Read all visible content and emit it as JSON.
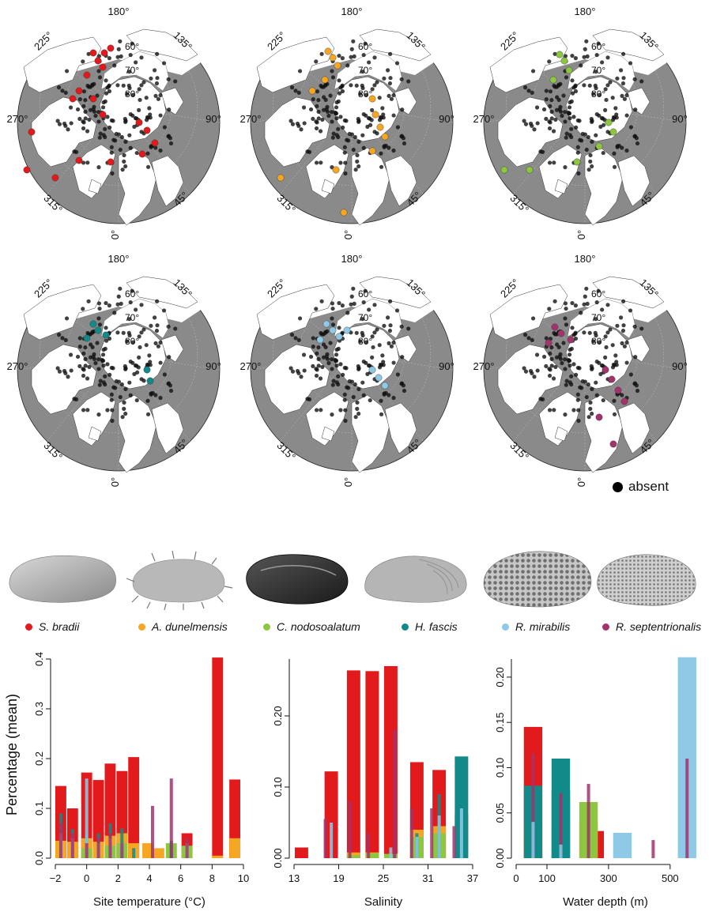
{
  "maps": {
    "lat_labels": [
      "60°",
      "70°",
      "80°"
    ],
    "lon_labels": [
      "180°",
      "135°",
      "90°",
      "45°",
      "0°",
      "315°",
      "270°",
      "225°"
    ],
    "panels": [
      {
        "species": "S. bradii",
        "color": "#e31a1c"
      },
      {
        "species": "A. dunelmensis",
        "color": "#f5a623"
      },
      {
        "species": "C. nodosoalatum",
        "color": "#8dc63f"
      },
      {
        "species": "H. fascis",
        "color": "#138a8a"
      },
      {
        "species": "R. mirabilis",
        "color": "#8ecae6"
      },
      {
        "species": "R. septentrionalis",
        "color": "#a3336b"
      }
    ]
  },
  "absent_legend": {
    "label": "absent",
    "color": "#000000"
  },
  "species_legend": [
    {
      "name": "S. bradii",
      "color": "#e31a1c"
    },
    {
      "name": "A. dunelmensis",
      "color": "#f5a623"
    },
    {
      "name": "C. nodosoalatum",
      "color": "#8dc63f"
    },
    {
      "name": "H. fascis",
      "color": "#138a8a"
    },
    {
      "name": "R. mirabilis",
      "color": "#8ecae6"
    },
    {
      "name": "R. septentrionalis",
      "color": "#a3336b"
    }
  ],
  "ylabel_main": "Percentage (mean)",
  "chart_data": [
    {
      "type": "bar",
      "xlabel": "Site temperature (°C)",
      "ylabel": "Percentage (mean)",
      "xlim": [
        -2,
        10
      ],
      "ylim": [
        0,
        0.4
      ],
      "xticks": [
        "−2",
        "0",
        "2",
        "4",
        "6",
        "8",
        "10"
      ],
      "yticks": [
        "0.0",
        "0.1",
        "0.2",
        "0.3",
        "0.4"
      ],
      "bin_width": 0.7,
      "series": [
        {
          "color": "#e31a1c",
          "bars": [
            [
              -1.65,
              0.145
            ],
            [
              -0.9,
              0.1
            ],
            [
              0.0,
              0.172
            ],
            [
              0.75,
              0.157
            ],
            [
              1.5,
              0.19
            ],
            [
              2.25,
              0.175
            ],
            [
              3.0,
              0.203
            ],
            [
              6.4,
              0.05
            ],
            [
              8.35,
              0.403
            ],
            [
              9.45,
              0.158
            ]
          ]
        },
        {
          "color": "#f5a623",
          "bars": [
            [
              -1.65,
              0.035
            ],
            [
              -0.9,
              0.033
            ],
            [
              0.0,
              0.04
            ],
            [
              0.75,
              0.033
            ],
            [
              1.5,
              0.045
            ],
            [
              2.25,
              0.05
            ],
            [
              3.0,
              0.03
            ],
            [
              3.9,
              0.03
            ],
            [
              4.6,
              0.02
            ],
            [
              5.4,
              0.005
            ],
            [
              8.35,
              0.005
            ],
            [
              9.45,
              0.04
            ]
          ]
        },
        {
          "color": "#8dc63f",
          "bars": [
            [
              0.0,
              0.02
            ],
            [
              1.5,
              0.025
            ],
            [
              2.25,
              0.03
            ],
            [
              5.4,
              0.03
            ],
            [
              6.4,
              0.025
            ]
          ]
        }
      ],
      "lines": [
        {
          "color": "#138a8a",
          "points": [
            [
              -1.65,
              0.09
            ],
            [
              -0.9,
              0.058
            ],
            [
              0.0,
              0.05
            ],
            [
              0.75,
              0.05
            ],
            [
              1.5,
              0.07
            ],
            [
              2.25,
              0.06
            ],
            [
              3.0,
              0.02
            ],
            [
              5.4,
              0.035
            ]
          ]
        },
        {
          "color": "#8ecae6",
          "points": [
            [
              -1.65,
              0.05
            ],
            [
              -0.9,
              0.04
            ],
            [
              0.0,
              0.16
            ],
            [
              0.75,
              0.03
            ],
            [
              1.5,
              0.04
            ],
            [
              2.25,
              0.03
            ],
            [
              6.4,
              0.03
            ]
          ]
        },
        {
          "color": "#a3336b",
          "points": [
            [
              -1.65,
              0.07
            ],
            [
              -0.9,
              0.05
            ],
            [
              0.0,
              0.03
            ],
            [
              0.75,
              0.04
            ],
            [
              1.5,
              0.05
            ],
            [
              2.25,
              0.03
            ],
            [
              4.2,
              0.105
            ],
            [
              5.4,
              0.16
            ],
            [
              6.4,
              0.04
            ]
          ]
        }
      ]
    },
    {
      "type": "bar",
      "xlabel": "Salinity",
      "xlim": [
        13,
        37
      ],
      "ylim": [
        0,
        0.28
      ],
      "xticks": [
        "13",
        "19",
        "25",
        "31",
        "37"
      ],
      "yticks": [
        "0.00",
        "0.10",
        "0.20"
      ],
      "bin_width": 1.8,
      "series": [
        {
          "color": "#e31a1c",
          "bars": [
            [
              14.0,
              0.015
            ],
            [
              18.0,
              0.122
            ],
            [
              21.0,
              0.264
            ],
            [
              23.5,
              0.263
            ],
            [
              26.0,
              0.27
            ],
            [
              29.5,
              0.135
            ],
            [
              32.5,
              0.124
            ],
            [
              35.5,
              0.062
            ]
          ]
        },
        {
          "color": "#f5a623",
          "bars": [
            [
              21.0,
              0.008
            ],
            [
              23.5,
              0.008
            ],
            [
              29.5,
              0.04
            ],
            [
              32.5,
              0.045
            ],
            [
              35.5,
              0.06
            ]
          ]
        },
        {
          "color": "#8dc63f",
          "bars": [
            [
              21.0,
              0.004
            ],
            [
              23.5,
              0.007
            ],
            [
              26.0,
              0.006
            ],
            [
              29.5,
              0.03
            ],
            [
              32.5,
              0.035
            ],
            [
              35.5,
              0.04
            ]
          ]
        },
        {
          "color": "#138a8a",
          "bars": [
            [
              35.5,
              0.143
            ]
          ]
        }
      ],
      "lines": [
        {
          "color": "#138a8a",
          "points": [
            [
              29.5,
              0.035
            ],
            [
              32.5,
              0.09
            ]
          ]
        },
        {
          "color": "#8ecae6",
          "points": [
            [
              18.0,
              0.05
            ],
            [
              26.0,
              0.015
            ],
            [
              29.5,
              0.03
            ],
            [
              32.5,
              0.06
            ],
            [
              35.5,
              0.07
            ]
          ]
        },
        {
          "color": "#a3336b",
          "points": [
            [
              17.2,
              0.055
            ],
            [
              20.5,
              0.08
            ],
            [
              23.0,
              0.035
            ],
            [
              26.5,
              0.18
            ],
            [
              28.8,
              0.07
            ],
            [
              31.5,
              0.07
            ],
            [
              34.5,
              0.045
            ]
          ]
        }
      ]
    },
    {
      "type": "bar",
      "xlabel": "Water depth (m)",
      "xlim": [
        0,
        580
      ],
      "ylim": [
        0,
        0.22
      ],
      "xticks": [
        "0",
        "100",
        "300",
        "500"
      ],
      "yticks": [
        "0.00",
        "0.05",
        "0.10",
        "0.15",
        "0.20"
      ],
      "bin_width": 60,
      "series": [
        {
          "color": "#e31a1c",
          "bars": [
            [
              55,
              0.145
            ],
            [
              145,
              0.075
            ],
            [
              255,
              0.03
            ]
          ]
        },
        {
          "color": "#f5a623",
          "bars": [
            [
              55,
              0.038
            ],
            [
              145,
              0.038
            ],
            [
              235,
              0.04
            ]
          ]
        },
        {
          "color": "#8dc63f",
          "bars": [
            [
              145,
              0.07
            ],
            [
              235,
              0.062
            ]
          ]
        },
        {
          "color": "#138a8a",
          "bars": [
            [
              55,
              0.08
            ],
            [
              145,
              0.11
            ]
          ]
        },
        {
          "color": "#8ecae6",
          "bars": [
            [
              345,
              0.028
            ],
            [
              555,
              0.222
            ]
          ]
        }
      ],
      "lines": [
        {
          "color": "#a3336b",
          "points": [
            [
              55,
              0.116
            ],
            [
              145,
              0.072
            ],
            [
              235,
              0.082
            ],
            [
              445,
              0.02
            ],
            [
              555,
              0.11
            ]
          ]
        },
        {
          "color": "#8ecae6",
          "points": [
            [
              55,
              0.04
            ],
            [
              145,
              0.015
            ]
          ]
        }
      ]
    }
  ]
}
